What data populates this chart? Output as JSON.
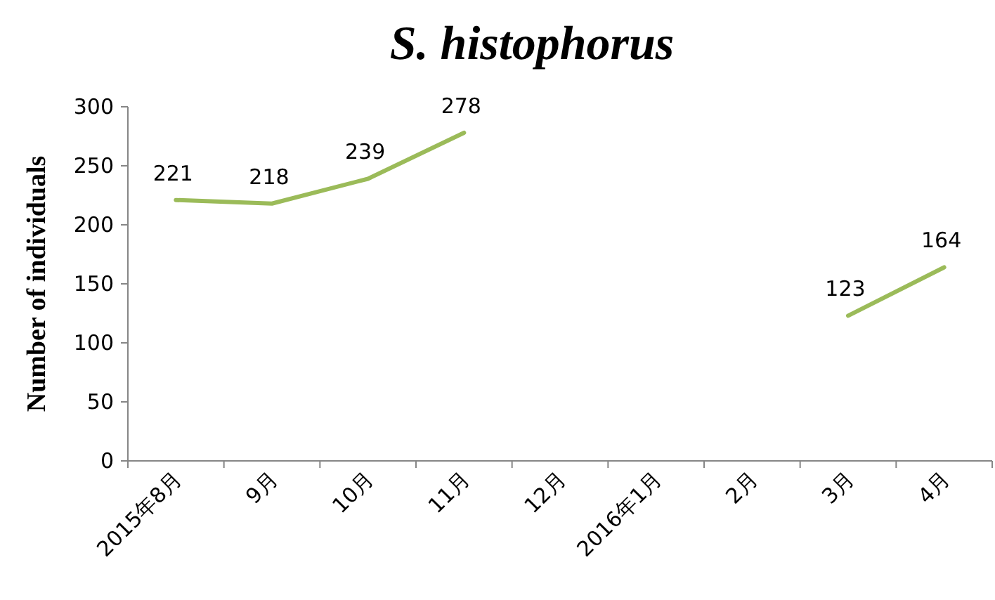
{
  "chart_data": {
    "type": "line",
    "title": "S. histophorus",
    "ylabel": "Number of individuals",
    "categories": [
      "2015年8月",
      "9月",
      "10月",
      "11月",
      "12月",
      "2016年1月",
      "2月",
      "3月",
      "4月"
    ],
    "values": [
      221,
      218,
      239,
      278,
      null,
      null,
      null,
      123,
      164
    ],
    "color": "#9bbb59",
    "ylim": [
      0,
      300
    ],
    "yticks": [
      0,
      50,
      100,
      150,
      200,
      250,
      300
    ],
    "data_labels": true,
    "grid": false,
    "marker": "none",
    "line_style": "solid"
  }
}
